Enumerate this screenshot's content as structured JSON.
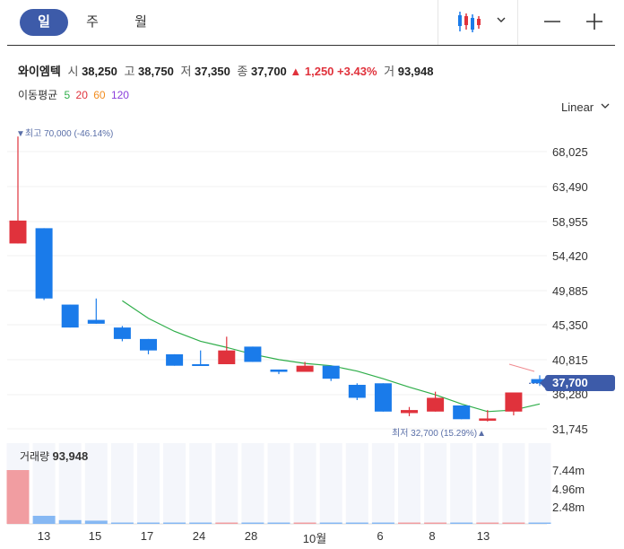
{
  "toolbar": {
    "tabs": [
      "일",
      "주",
      "월"
    ],
    "active_tab": "일"
  },
  "stock": {
    "name": "와이엠텍",
    "open_label": "시",
    "open": "38,250",
    "high_label": "고",
    "high": "38,750",
    "low_label": "저",
    "low": "37,350",
    "close_label": "종",
    "close": "37,700",
    "change": "▲ 1,250",
    "change_pct": "+3.43%",
    "volume_label": "거",
    "volume": "93,948"
  },
  "moving_average": {
    "label": "이동평균",
    "periods": [
      "5",
      "20",
      "60",
      "120"
    ],
    "colors": [
      "#2fae4a",
      "#e0323c",
      "#f28c1e",
      "#8a3ddb"
    ]
  },
  "scale_mode": "Linear",
  "y_axis_ticks": [
    "68,025",
    "63,490",
    "58,955",
    "54,420",
    "49,885",
    "45,350",
    "40,815",
    "36,280",
    "31,745"
  ],
  "current_price_tag": "37,700",
  "high_marker": "▼최고 70,000 (-46.14%)",
  "low_marker": "최저 32,700 (15.29%)▲",
  "volume_panel": {
    "label": "거래량",
    "value": "93,948",
    "ticks": [
      "7.44m",
      "4.96m",
      "2.48m"
    ]
  },
  "x_axis_ticks": [
    "13",
    "15",
    "17",
    "24",
    "28",
    "10월",
    "6",
    "8",
    "13"
  ],
  "colors": {
    "up": "#e0323c",
    "down": "#1a7bea",
    "accent": "#3d5ba9",
    "ma5": "#2fae4a"
  },
  "chart_data": {
    "type": "candlestick",
    "candles": [
      {
        "open": 56000,
        "close": 59000,
        "high": 70000,
        "low": 56000
      },
      {
        "open": 58000,
        "close": 48800,
        "high": 58000,
        "low": 48600
      },
      {
        "open": 48000,
        "close": 45000,
        "high": 48000,
        "low": 45000
      },
      {
        "open": 46000,
        "close": 45500,
        "high": 48800,
        "low": 45500
      },
      {
        "open": 45000,
        "close": 43500,
        "high": 45200,
        "low": 43200
      },
      {
        "open": 43500,
        "close": 42000,
        "high": 43500,
        "low": 41500
      },
      {
        "open": 41500,
        "close": 40000,
        "high": 41500,
        "low": 40000
      },
      {
        "open": 40200,
        "close": 40000,
        "high": 42000,
        "low": 40000
      },
      {
        "open": 40200,
        "close": 42000,
        "high": 43800,
        "low": 40200
      },
      {
        "open": 42500,
        "close": 40500,
        "high": 42500,
        "low": 40500
      },
      {
        "open": 39500,
        "close": 39200,
        "high": 39500,
        "low": 38900
      },
      {
        "open": 39200,
        "close": 40000,
        "high": 40500,
        "low": 39200
      },
      {
        "open": 40000,
        "close": 38300,
        "high": 40000,
        "low": 38000
      },
      {
        "open": 37500,
        "close": 35800,
        "high": 37700,
        "low": 35500
      },
      {
        "open": 37700,
        "close": 34000,
        "high": 37700,
        "low": 34000
      },
      {
        "open": 33800,
        "close": 34200,
        "high": 34600,
        "low": 33400
      },
      {
        "open": 34000,
        "close": 35800,
        "high": 36600,
        "low": 34000
      },
      {
        "open": 34800,
        "close": 33000,
        "high": 34800,
        "low": 33000
      },
      {
        "open": 32800,
        "close": 33100,
        "high": 34200,
        "low": 32700
      },
      {
        "open": 34000,
        "close": 36500,
        "high": 36500,
        "low": 33500
      },
      {
        "open": 38250,
        "close": 37700,
        "high": 38750,
        "low": 37350
      }
    ],
    "ma5": [
      null,
      null,
      null,
      null,
      48500,
      46200,
      44500,
      43200,
      42400,
      41500,
      40800,
      40300,
      40000,
      39300,
      38300,
      37200,
      36200,
      35000,
      34000,
      34200,
      35000
    ],
    "volume_fraction_of_max": [
      1.0,
      0.15,
      0.07,
      0.06,
      0.02,
      0.02,
      0.01,
      0.01,
      0.015,
      0.01,
      0.01,
      0.01,
      0.01,
      0.01,
      0.01,
      0.01,
      0.01,
      0.01,
      0.01,
      0.01,
      0.005
    ],
    "ylim": [
      30000,
      70000
    ]
  }
}
